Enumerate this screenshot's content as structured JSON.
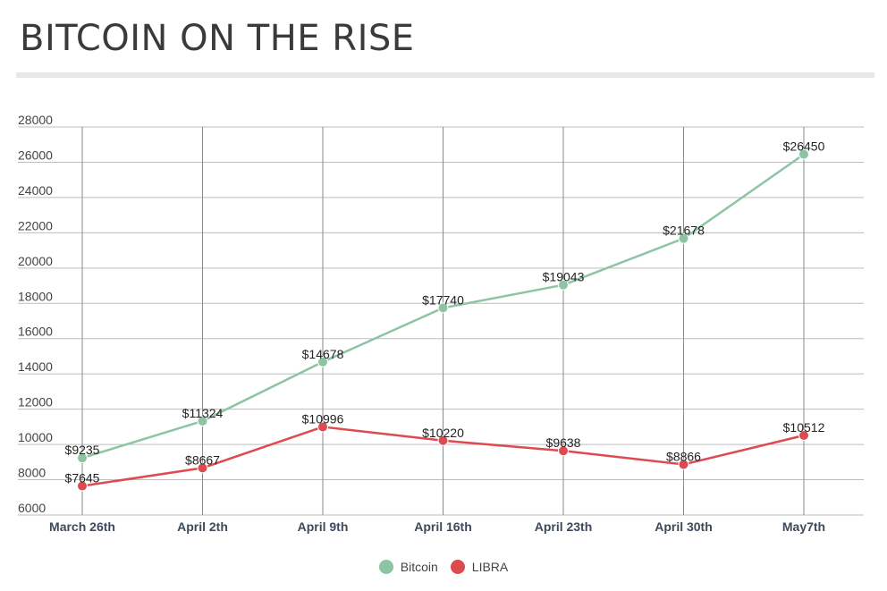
{
  "title": "BITCOIN ON THE RISE",
  "chart_data": {
    "type": "line",
    "title": "BITCOIN ON THE RISE",
    "categories": [
      "March 26th",
      "April 2th",
      "April 9th",
      "April 16th",
      "April 23th",
      "April 30th",
      "May7th"
    ],
    "ylim": [
      6000,
      28000
    ],
    "yticks": [
      6000,
      8000,
      10000,
      12000,
      14000,
      16000,
      18000,
      20000,
      22000,
      24000,
      26000,
      28000
    ],
    "grid": true,
    "legend_position": "bottom",
    "series": [
      {
        "name": "Bitcoin",
        "color": "#8dc4a4",
        "values": [
          9235,
          11324,
          14678,
          17740,
          19043,
          21678,
          26450
        ],
        "labels": [
          "$9235",
          "$11324",
          "$14678",
          "$17740",
          "$19043",
          "$21678",
          "$26450"
        ]
      },
      {
        "name": "LIBRA",
        "color": "#dd4a4f",
        "values": [
          7645,
          8667,
          10996,
          10220,
          9638,
          8866,
          10512
        ],
        "labels": [
          "$7645",
          "$8667",
          "$10996",
          "$10220",
          "$9638",
          "$8866",
          "$10512"
        ]
      }
    ]
  }
}
